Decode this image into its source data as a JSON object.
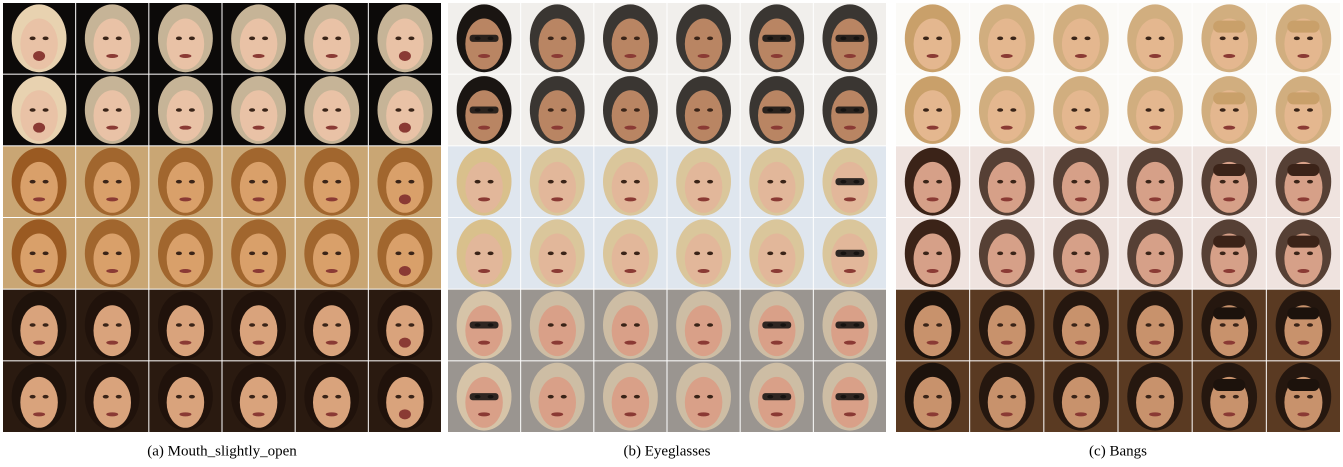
{
  "figure": {
    "panels": [
      {
        "caption": "(a) Mouth_slightly_open"
      },
      {
        "caption": "(b) Eyeglasses"
      },
      {
        "caption": "(c) Bangs"
      }
    ]
  }
}
